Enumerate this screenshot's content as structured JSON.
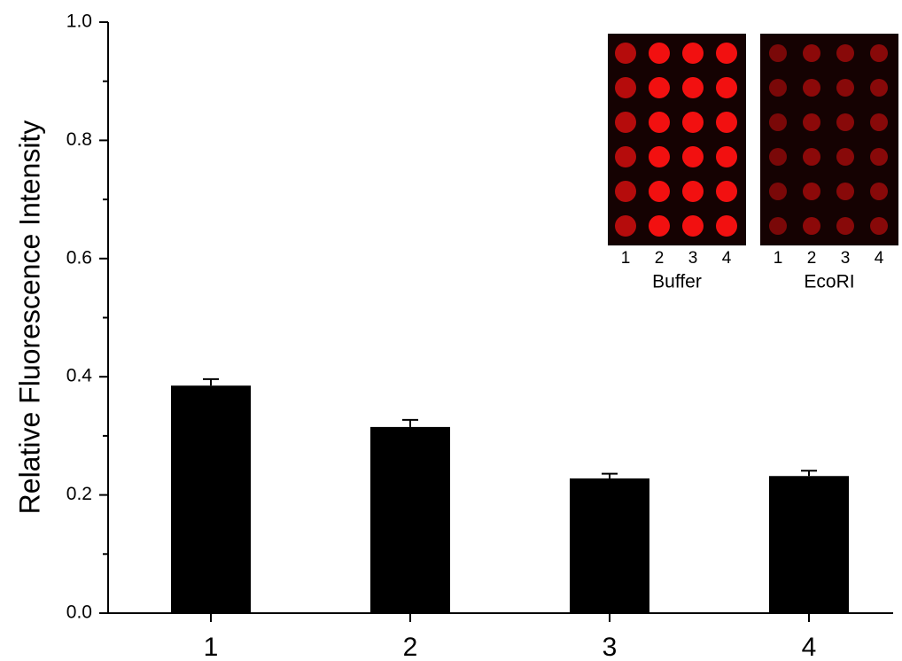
{
  "chart_data": {
    "type": "bar",
    "y_label": "Relative Fluorescence Intensity",
    "categories": [
      "1",
      "2",
      "3",
      "4"
    ],
    "values": [
      0.385,
      0.315,
      0.228,
      0.232
    ],
    "errors": [
      0.011,
      0.012,
      0.008,
      0.009
    ],
    "color": "#000000",
    "ylim": [
      0,
      1
    ],
    "yticks": [
      {
        "value": 0,
        "label": "0.0"
      },
      0.2,
      0.4,
      0.6,
      0.8,
      {
        "value": 1,
        "label": "1.0"
      }
    ],
    "grid": false,
    "inset": {
      "panels": [
        {
          "label": "Buffer",
          "lanes": [
            "1",
            "2",
            "3",
            "4"
          ]
        },
        {
          "label": "EcoRI",
          "lanes": [
            "1",
            "2",
            "3",
            "4"
          ]
        }
      ]
    }
  }
}
